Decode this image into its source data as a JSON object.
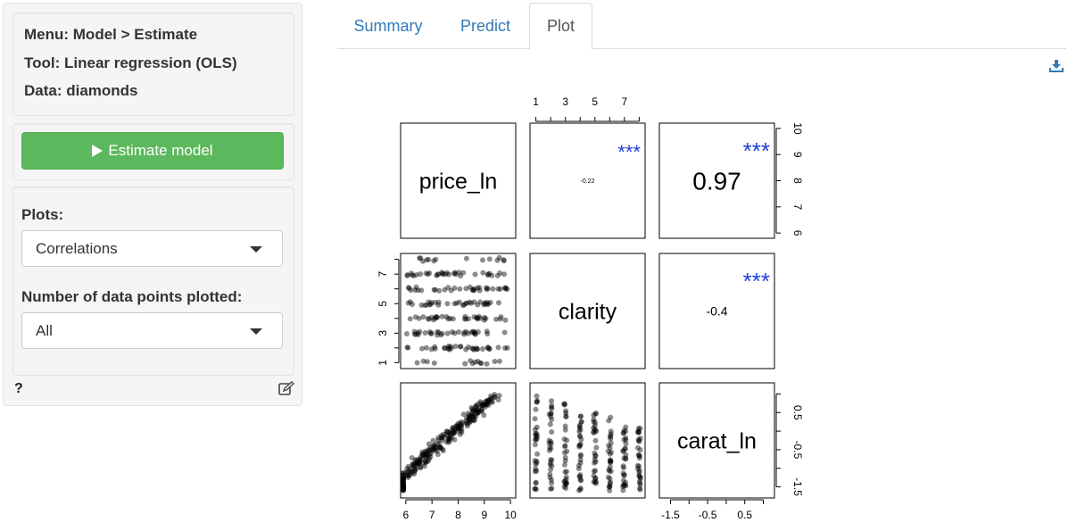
{
  "sidebar": {
    "info": {
      "menu": "Menu: Model > Estimate",
      "tool": "Tool: Linear regression (OLS)",
      "data": "Data: diamonds"
    },
    "estimate_button": "Estimate model",
    "plots_label": "Plots:",
    "plots_value": "Correlations",
    "npoints_label": "Number of data points plotted:",
    "npoints_value": "All",
    "help_icon": "?",
    "edit_icon": "edit-icon"
  },
  "tabs": [
    {
      "label": "Summary",
      "active": false
    },
    {
      "label": "Predict",
      "active": false
    },
    {
      "label": "Plot",
      "active": true
    }
  ],
  "download_icon": "download-icon",
  "chart_data": {
    "type": "scatter",
    "variables": [
      "price_ln",
      "clarity",
      "carat_ln"
    ],
    "correlations": [
      {
        "pair": [
          "price_ln",
          "clarity"
        ],
        "r_label": "-0.22",
        "stars": "***"
      },
      {
        "pair": [
          "price_ln",
          "carat_ln"
        ],
        "r_label": "0.97",
        "stars": "***"
      },
      {
        "pair": [
          "clarity",
          "carat_ln"
        ],
        "r_label": "-0.4",
        "stars": "***"
      }
    ],
    "axes": {
      "price_ln_ticks": [
        "6",
        "7",
        "8",
        "9",
        "10"
      ],
      "clarity_ticks": [
        "1",
        "3",
        "5",
        "7"
      ],
      "carat_ln_ticks": [
        "-1.5",
        "-0.5",
        "0.5"
      ]
    },
    "star_color": "#1f3fdc",
    "point_color": "#000000"
  }
}
